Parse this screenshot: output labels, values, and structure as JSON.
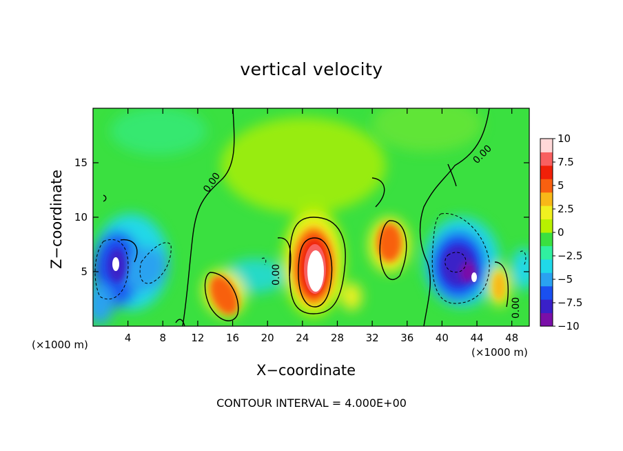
{
  "chart_data": {
    "type": "heatmap",
    "title": "vertical velocity",
    "xlabel": "X−coordinate",
    "ylabel": "Z−coordinate",
    "x_unit": "(×1000 m)",
    "xlim": [
      0,
      50
    ],
    "ylim": [
      0,
      20
    ],
    "x_ticks": [
      "4",
      "8",
      "12",
      "16",
      "20",
      "24",
      "28",
      "32",
      "36",
      "40",
      "44",
      "48"
    ],
    "x_tick_values": [
      4,
      8,
      12,
      16,
      20,
      24,
      28,
      32,
      36,
      40,
      44,
      48
    ],
    "y_ticks": [
      "5",
      "10",
      "15"
    ],
    "y_tick_values": [
      5,
      10,
      15
    ],
    "footer": "CONTOUR INTERVAL = 4.000E+00",
    "contour_label": "0.00",
    "colorbar": {
      "min": -10,
      "max": 10,
      "tick_labels": [
        "10",
        "7.5",
        "5",
        "2.5",
        "0",
        "−2.5",
        "−5",
        "−7.5",
        "−10"
      ],
      "tick_values": [
        10,
        7.5,
        5,
        2.5,
        0,
        -2.5,
        -5,
        -7.5,
        -10
      ],
      "colors": [
        "#7a0fa8",
        "#3a20c8",
        "#1a50f0",
        "#2aa2f0",
        "#20d8e8",
        "#30f0a0",
        "#3ae040",
        "#b8f000",
        "#f0f020",
        "#f8b818",
        "#f86010",
        "#f02008",
        "#f86060",
        "#ffd8d8"
      ]
    },
    "features": [
      {
        "label": "updraft",
        "x": 25.5,
        "z": 5.0,
        "w": 12
      },
      {
        "label": "downdraft",
        "x": 2.5,
        "z": 5.5,
        "w": -12
      },
      {
        "label": "downdraft",
        "x": 42.0,
        "z": 5.5,
        "w": -9
      },
      {
        "label": "updraft",
        "x": 15.0,
        "z": 3.0,
        "w": 6
      },
      {
        "label": "updraft",
        "x": 34.0,
        "z": 7.5,
        "w": 6
      }
    ]
  }
}
